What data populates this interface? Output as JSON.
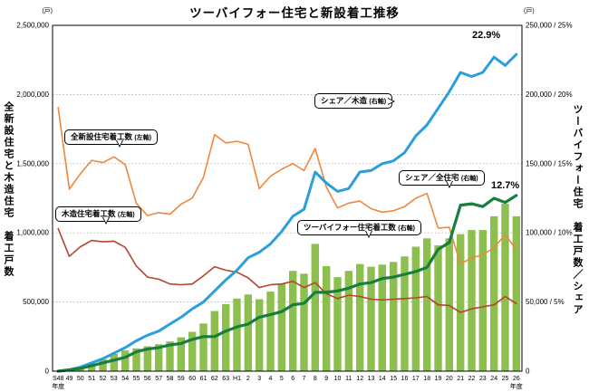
{
  "title": "ツーバイフォー住宅と新設着工推移",
  "axes": {
    "left": {
      "unit": "(戸)",
      "vertical_title": "全新設住宅と木造住宅　着工戸数",
      "tick_labels": [
        "2,500,000",
        "2,000,000",
        "1,500,000",
        "1,000,000",
        "500,000",
        "0"
      ],
      "tick_values": [
        2500000,
        2000000,
        1500000,
        1000000,
        500000,
        0
      ]
    },
    "right": {
      "unit": "(戸)",
      "vertical_title": "ツーバイフォー住宅　着工戸数／シェア",
      "tick_labels": [
        "250,000 / 25%",
        "200,000 / 20%",
        "150,000 / 15%",
        "100,000 / 10%",
        "50,000 / 5%",
        "0"
      ],
      "tick_values": [
        25,
        20,
        15,
        10,
        5,
        0
      ]
    },
    "x": {
      "unit": "年度"
    }
  },
  "callouts": [
    {
      "label": "全新設住宅着工数",
      "axis_note": "(左軸)"
    },
    {
      "label": "木造住宅着工数",
      "axis_note": "(左軸)"
    },
    {
      "label": "シェア／木造",
      "axis_note": "(右軸)"
    },
    {
      "label": "シェア／全住宅",
      "axis_note": "(右軸)"
    },
    {
      "label": "ツーバイフォー住宅着工数",
      "axis_note": "(右軸)"
    }
  ],
  "value_labels": {
    "share_wooden_latest": "22.9%",
    "share_total_latest": "12.7%"
  },
  "chart_data": {
    "type": "bar+line combo, dual axis",
    "categories": [
      "S48",
      "49",
      "50",
      "51",
      "52",
      "53",
      "54",
      "55",
      "56",
      "57",
      "58",
      "59",
      "60",
      "61",
      "62",
      "63",
      "H1",
      "2",
      "3",
      "4",
      "5",
      "6",
      "7",
      "8",
      "9",
      "10",
      "11",
      "12",
      "13",
      "14",
      "15",
      "16",
      "17",
      "18",
      "19",
      "20",
      "21",
      "22",
      "23",
      "24",
      "25",
      "26"
    ],
    "x_note": "年度 (fiscal year, S48=1973 to H26=2014)",
    "left_ylim": [
      0,
      2500000
    ],
    "right_ylim_units": [
      0,
      250000
    ],
    "right_ylim_pct": [
      0,
      25
    ],
    "grid": "dotted horizontal lines every 500,000 units / 5%",
    "series": [
      {
        "id": "twobyfour",
        "name": "ツーバイフォー住宅着工数",
        "type": "bar",
        "axis": "right",
        "color": "#8CBF4E",
        "values": [
          300,
          1100,
          2800,
          5400,
          8600,
          12500,
          15000,
          16500,
          18000,
          19500,
          21500,
          24500,
          28500,
          34500,
          43500,
          48500,
          52500,
          55500,
          52000,
          57500,
          63500,
          72500,
          70500,
          92000,
          76000,
          68000,
          72500,
          77500,
          75500,
          77000,
          79000,
          83000,
          90000,
          96000,
          91000,
          96000,
          99000,
          102000,
          102000,
          112000,
          121000,
          112000
        ]
      },
      {
        "id": "total",
        "name": "全新設住宅着工数",
        "type": "line",
        "axis": "left",
        "color": "#F0873B",
        "width": 1.6,
        "values": [
          1905000,
          1316000,
          1428000,
          1524000,
          1508000,
          1549000,
          1493000,
          1213000,
          1125000,
          1146000,
          1135000,
          1207000,
          1251000,
          1401000,
          1710000,
          1650000,
          1662000,
          1640000,
          1320000,
          1410000,
          1460000,
          1500000,
          1450000,
          1610000,
          1330000,
          1180000,
          1215000,
          1230000,
          1175000,
          1150000,
          1160000,
          1190000,
          1250000,
          1285000,
          1035000,
          1040000,
          775000,
          819000,
          841000,
          893000,
          987000,
          880000
        ]
      },
      {
        "id": "wooden",
        "name": "木造住宅着工数",
        "type": "line",
        "axis": "left",
        "color": "#B5432F",
        "width": 1.6,
        "values": [
          1030000,
          830000,
          900000,
          945000,
          935000,
          940000,
          895000,
          760000,
          680000,
          665000,
          630000,
          625000,
          630000,
          690000,
          755000,
          730000,
          715000,
          675000,
          605000,
          625000,
          630000,
          650000,
          605000,
          640000,
          560000,
          525000,
          550000,
          540000,
          520000,
          515000,
          520000,
          525000,
          530000,
          540000,
          480000,
          475000,
          425000,
          450000,
          465000,
          480000,
          540000,
          489000
        ]
      },
      {
        "id": "share-wooden",
        "name": "シェア／木造",
        "type": "line",
        "axis": "right_pct",
        "color": "#2B9FD9",
        "width": 3,
        "values": [
          0.0,
          0.1,
          0.3,
          0.6,
          0.9,
          1.3,
          1.7,
          2.2,
          2.6,
          2.9,
          3.4,
          3.9,
          4.5,
          5.0,
          5.8,
          6.6,
          7.3,
          8.2,
          8.6,
          9.2,
          10.1,
          11.2,
          11.7,
          14.4,
          13.6,
          13.0,
          13.2,
          14.4,
          14.5,
          15.0,
          15.2,
          15.8,
          17.0,
          17.8,
          19.0,
          20.2,
          21.6,
          21.3,
          21.6,
          22.7,
          22.1,
          22.9
        ]
      },
      {
        "id": "share-total",
        "name": "シェア／全住宅",
        "type": "line",
        "axis": "right_pct",
        "color": "#177E3E",
        "width": 3.2,
        "values": [
          0.0,
          0.1,
          0.2,
          0.4,
          0.6,
          0.8,
          1.0,
          1.4,
          1.6,
          1.7,
          1.9,
          2.0,
          2.3,
          2.5,
          2.5,
          2.9,
          3.2,
          3.4,
          3.9,
          4.1,
          4.3,
          4.8,
          4.9,
          5.7,
          5.7,
          5.8,
          6.0,
          6.3,
          6.4,
          6.7,
          6.8,
          7.0,
          7.2,
          7.5,
          8.8,
          9.3,
          12.0,
          12.1,
          11.9,
          12.5,
          12.2,
          12.7
        ]
      }
    ],
    "annotations": [
      {
        "text": "22.9%",
        "series": "シェア／木造",
        "at_category": "26"
      },
      {
        "text": "12.7%",
        "series": "シェア／全住宅",
        "at_category": "26"
      }
    ]
  },
  "colors": {
    "bar_green": "#8CBF4E",
    "line_orange": "#F0873B",
    "line_dark_red": "#B5432F",
    "line_blue": "#2B9FD9",
    "line_dark_green": "#177E3E",
    "grid": "#9A9A9A",
    "axis": "#000000"
  }
}
